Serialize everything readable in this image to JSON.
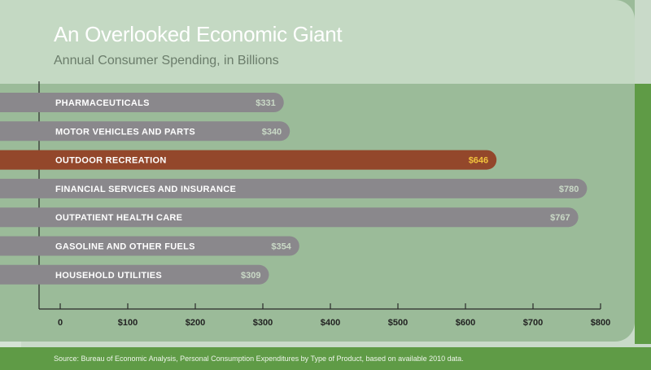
{
  "title": "An Overlooked Economic Giant",
  "subtitle": "Annual Consumer Spending, in Billions",
  "source": "Source:  Bureau of Economic Analysis, Personal Consumption Expenditures by Type of Product, based on available 2010 data.",
  "colors": {
    "bar": "#8a888c",
    "highlight_bar": "#93472b",
    "bar_label": "#ffffff",
    "value_label": "#c9d9c6",
    "highlight_value": "#f1c23d",
    "axis": "#2a2a2a"
  },
  "chart_data": {
    "type": "bar",
    "orientation": "horizontal",
    "title": "An Overlooked Economic Giant",
    "subtitle": "Annual Consumer Spending, in Billions",
    "categories": [
      "PHARMACEUTICALS",
      "MOTOR VEHICLES AND PARTS",
      "OUTDOOR RECREATION",
      "FINANCIAL SERVICES AND INSURANCE",
      "OUTPATIENT HEALTH CARE",
      "GASOLINE AND OTHER FUELS",
      "HOUSEHOLD UTILITIES"
    ],
    "values": [
      331,
      340,
      646,
      780,
      767,
      354,
      309
    ],
    "value_labels": [
      "$331",
      "$340",
      "$646",
      "$780",
      "$767",
      "$354",
      "$309"
    ],
    "highlight": "OUTDOOR RECREATION",
    "xlim": [
      0,
      800
    ],
    "xticks": [
      0,
      100,
      200,
      300,
      400,
      500,
      600,
      700,
      800
    ],
    "xtick_labels": [
      "0",
      "$100",
      "$200",
      "$300",
      "$400",
      "$500",
      "$600",
      "$700",
      "$800"
    ],
    "xlabel": "",
    "ylabel": "",
    "grid": false
  }
}
